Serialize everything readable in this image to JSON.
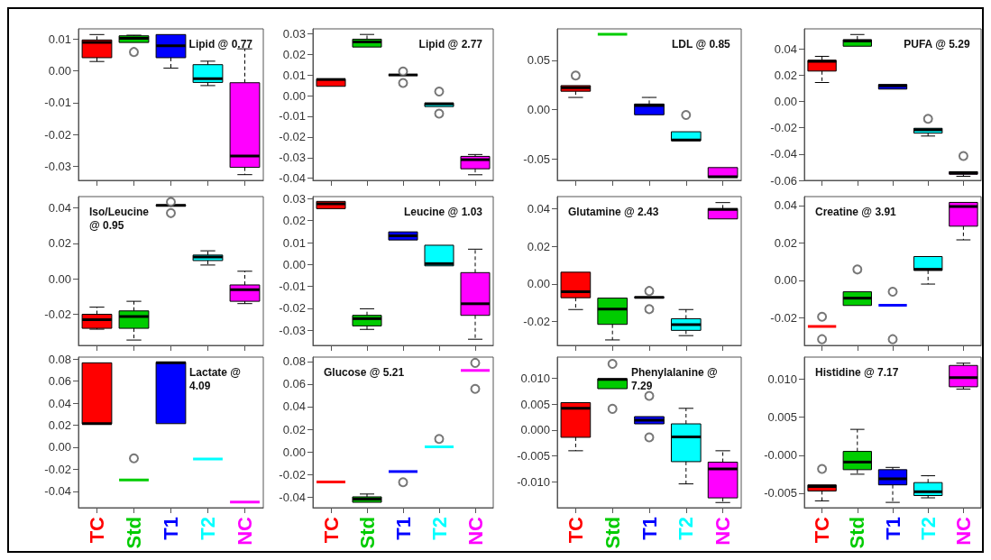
{
  "chart_data": [
    {
      "type": "box",
      "title": "Lipid @ 0.77",
      "categories": [
        "TC",
        "Std",
        "T1",
        "T2",
        "NC"
      ],
      "colors": [
        "#ff0000",
        "#00cc00",
        "#0000ff",
        "#00ffff",
        "#ff00ff"
      ],
      "tick_labels": "y",
      "ylim": [
        -0.0345,
        0.0133
      ],
      "yticks": [
        0.01,
        {
          "value": 0,
          "label": "0.00"
        },
        -0.01,
        -0.02,
        -0.03
      ],
      "boxes": [
        {
          "low": 0.003,
          "q1": 0.0042,
          "median": 0.009,
          "q3": 0.0098,
          "high": 0.0115
        },
        {
          "low": 0.009,
          "q1": 0.009,
          "median": 0.0103,
          "q3": 0.0111,
          "high": 0.0113,
          "outliers": [
            0.006
          ]
        },
        {
          "low": 0.0009,
          "q1": 0.0042,
          "median": 0.008,
          "q3": 0.0115,
          "high": 0.0115
        },
        {
          "low": -0.0046,
          "q1": -0.0036,
          "median": -0.0024,
          "q3": 0.002,
          "high": 0.0031
        },
        {
          "low": -0.0327,
          "q1": -0.0304,
          "median": -0.0268,
          "q3": -0.0037,
          "high": 0.007
        }
      ]
    },
    {
      "type": "box",
      "title": "Lipid @ 2.77",
      "categories": [
        "TC",
        "Std",
        "T1",
        "T2",
        "NC"
      ],
      "colors": [
        "#ff0000",
        "#00cc00",
        "#0000ff",
        "#00ffff",
        "#ff00ff"
      ],
      "tick_labels": "y",
      "ylim": [
        -0.041,
        0.0323
      ],
      "yticks": [
        0.03,
        0.02,
        0.01,
        {
          "value": 0,
          "label": "0.00"
        },
        -0.01,
        -0.02,
        -0.03,
        -0.04
      ],
      "boxes": [
        {
          "low": 0.0045,
          "q1": 0.0045,
          "median": 0.0078,
          "q3": 0.0081,
          "high": 0.0081
        },
        {
          "low": 0.0235,
          "q1": 0.0235,
          "median": 0.026,
          "q3": 0.0273,
          "high": 0.0296
        },
        {
          "low": 0.0098,
          "q1": 0.0098,
          "median": 0.01,
          "q3": 0.0102,
          "high": 0.0102,
          "outliers": [
            0.0117,
            0.0061
          ]
        },
        {
          "low": -0.0053,
          "q1": -0.0053,
          "median": -0.004,
          "q3": -0.0036,
          "high": -0.0036,
          "outliers": [
            0.002,
            -0.0087
          ]
        },
        {
          "low": -0.0383,
          "q1": -0.0354,
          "median": -0.031,
          "q3": -0.0294,
          "high": -0.0285
        }
      ]
    },
    {
      "type": "box",
      "title": "LDL @ 0.85",
      "categories": [
        "TC",
        "Std",
        "T1",
        "T2",
        "NC"
      ],
      "colors": [
        "#ff0000",
        "#00cc00",
        "#0000ff",
        "#00ffff",
        "#ff00ff"
      ],
      "tick_labels": "y",
      "ylim": [
        -0.072,
        0.082
      ],
      "yticks": [
        0.05,
        {
          "value": 0,
          "label": "0.00"
        },
        -0.05
      ],
      "boxes": [
        {
          "low": 0.0123,
          "q1": 0.0186,
          "median": 0.0223,
          "q3": 0.0243,
          "high": 0.0243,
          "outliers": [
            0.0346
          ]
        },
        {
          "low": 0.0764,
          "q1": 0.0764,
          "median": 0.0764,
          "q3": 0.0764,
          "high": 0.0764
        },
        {
          "low": -0.0053,
          "q1": -0.0053,
          "median": 0.004,
          "q3": 0.0056,
          "high": 0.0123
        },
        {
          "low": -0.0316,
          "q1": -0.0316,
          "median": -0.0309,
          "q3": -0.0226,
          "high": -0.0226,
          "outliers": [
            -0.0056
          ]
        },
        {
          "low": -0.069,
          "q1": -0.069,
          "median": -0.0684,
          "q3": -0.059,
          "high": -0.059
        }
      ]
    },
    {
      "type": "box",
      "title": "PUFA @ 5.29",
      "categories": [
        "TC",
        "Std",
        "T1",
        "T2",
        "NC"
      ],
      "colors": [
        "#ff0000",
        "#00cc00",
        "#0000ff",
        "#00ffff",
        "#ff00ff"
      ],
      "tick_labels": "y",
      "ylim": [
        -0.06,
        0.0552
      ],
      "yticks": [
        0.04,
        0.02,
        {
          "value": 0,
          "label": "0.00"
        },
        -0.02,
        -0.04,
        -0.06
      ],
      "boxes": [
        {
          "low": 0.0144,
          "q1": 0.0231,
          "median": 0.0306,
          "q3": 0.0313,
          "high": 0.0343
        },
        {
          "low": 0.042,
          "q1": 0.042,
          "median": 0.046,
          "q3": 0.047,
          "high": 0.0509
        },
        {
          "low": 0.0094,
          "q1": 0.0094,
          "median": 0.0119,
          "q3": 0.0129,
          "high": 0.0129
        },
        {
          "low": -0.0263,
          "q1": -0.0241,
          "median": -0.0216,
          "q3": -0.0204,
          "high": -0.0204,
          "outliers": [
            -0.0132
          ]
        },
        {
          "low": -0.0569,
          "q1": -0.0554,
          "median": -0.0542,
          "q3": -0.0534,
          "high": -0.0534,
          "outliers": [
            -0.0415
          ]
        }
      ]
    },
    {
      "type": "box",
      "title": "Iso/Leucine @ 0.95",
      "categories": [
        "TC",
        "Std",
        "T1",
        "T2",
        "NC"
      ],
      "colors": [
        "#ff0000",
        "#00cc00",
        "#0000ff",
        "#00ffff",
        "#ff00ff"
      ],
      "tick_labels": "y",
      "ylim": [
        -0.0374,
        0.0463
      ],
      "yticks": [
        0.04,
        0.02,
        {
          "value": 0,
          "label": "0.00"
        },
        -0.02
      ],
      "boxes": [
        {
          "low": -0.0283,
          "q1": -0.0278,
          "median": -0.023,
          "q3": -0.0199,
          "high": -0.0159
        },
        {
          "low": -0.0344,
          "q1": -0.0278,
          "median": -0.0212,
          "q3": -0.018,
          "high": -0.0126
        },
        {
          "low": 0.041,
          "q1": 0.041,
          "median": 0.0413,
          "q3": 0.0416,
          "high": 0.0416,
          "outliers": [
            0.0433,
            0.037
          ]
        },
        {
          "low": 0.0078,
          "q1": 0.0103,
          "median": 0.0123,
          "q3": 0.0134,
          "high": 0.0158
        },
        {
          "low": -0.0139,
          "q1": -0.0126,
          "median": -0.0061,
          "q3": -0.0034,
          "high": 0.0043
        }
      ]
    },
    {
      "type": "box",
      "title": "Leucine @ 1.03",
      "categories": [
        "TC",
        "Std",
        "T1",
        "T2",
        "NC"
      ],
      "colors": [
        "#ff0000",
        "#00cc00",
        "#0000ff",
        "#00ffff",
        "#ff00ff"
      ],
      "tick_labels": "y",
      "ylim": [
        -0.0369,
        0.031
      ],
      "yticks": [
        0.03,
        0.02,
        0.01,
        {
          "value": 0,
          "label": "0.00"
        },
        -0.01,
        -0.02,
        -0.03
      ],
      "boxes": [
        {
          "low": 0.0255,
          "q1": 0.0255,
          "median": 0.0277,
          "q3": 0.0288,
          "high": 0.0288
        },
        {
          "low": -0.0296,
          "q1": -0.028,
          "median": -0.0247,
          "q3": -0.0232,
          "high": -0.0202
        },
        {
          "low": 0.0112,
          "q1": 0.0112,
          "median": 0.0131,
          "q3": 0.0149,
          "high": 0.0149
        },
        {
          "low": -0.0006,
          "q1": -0.0006,
          "median": 0.0004,
          "q3": 0.0088,
          "high": 0.0088
        },
        {
          "low": -0.0341,
          "q1": -0.0232,
          "median": -0.0179,
          "q3": -0.0037,
          "high": 0.007
        }
      ]
    },
    {
      "type": "box",
      "title": "Glutamine @ 2.43",
      "categories": [
        "TC",
        "Std",
        "T1",
        "T2",
        "NC"
      ],
      "colors": [
        "#ff0000",
        "#00cc00",
        "#0000ff",
        "#00ffff",
        "#ff00ff"
      ],
      "tick_labels": "y",
      "ylim": [
        -0.0327,
        0.0466
      ],
      "yticks": [
        0.04,
        0.02,
        {
          "value": 0,
          "label": "0.00"
        },
        -0.02
      ],
      "boxes": [
        {
          "low": -0.0136,
          "q1": -0.0073,
          "median": -0.0041,
          "q3": 0.0063,
          "high": 0.0063
        },
        {
          "low": -0.0298,
          "q1": -0.0215,
          "median": -0.0134,
          "q3": -0.0075,
          "high": -0.0075
        },
        {
          "low": -0.0073,
          "q1": -0.0073,
          "median": -0.0071,
          "q3": -0.007,
          "high": -0.007,
          "outliers": [
            -0.0037,
            -0.0134
          ]
        },
        {
          "low": -0.0275,
          "q1": -0.0247,
          "median": -0.0217,
          "q3": -0.0185,
          "high": -0.0136
        },
        {
          "low": 0.0347,
          "q1": 0.0347,
          "median": 0.0397,
          "q3": 0.0402,
          "high": 0.0434
        }
      ]
    },
    {
      "type": "box",
      "title": "Creatine @ 3.91",
      "categories": [
        "TC",
        "Std",
        "T1",
        "T2",
        "NC"
      ],
      "colors": [
        "#ff0000",
        "#00cc00",
        "#0000ff",
        "#00ffff",
        "#ff00ff"
      ],
      "tick_labels": "y",
      "ylim": [
        -0.0347,
        0.0447
      ],
      "yticks": [
        0.04,
        0.02,
        {
          "value": 0,
          "label": "0.00"
        },
        -0.02
      ],
      "boxes": [
        {
          "low": -0.0246,
          "q1": -0.0246,
          "median": -0.0246,
          "q3": -0.0246,
          "high": -0.0246,
          "outliers": [
            -0.0194,
            -0.0314
          ]
        },
        {
          "low": -0.0134,
          "q1": -0.0134,
          "median": -0.0095,
          "q3": -0.0061,
          "high": -0.0061,
          "outliers": [
            0.0058
          ]
        },
        {
          "low": -0.0133,
          "q1": -0.0133,
          "median": -0.0133,
          "q3": -0.0133,
          "high": -0.0133,
          "outliers": [
            -0.0061,
            -0.0314
          ]
        },
        {
          "low": -0.002,
          "q1": 0.0053,
          "median": 0.0059,
          "q3": 0.0127,
          "high": 0.0127
        },
        {
          "low": 0.0216,
          "q1": 0.0289,
          "median": 0.0394,
          "q3": 0.0416,
          "high": 0.0416
        }
      ]
    },
    {
      "type": "box",
      "title": "Lactate @ 4.09",
      "categories": [
        "TC",
        "Std",
        "T1",
        "T2",
        "NC"
      ],
      "colors": [
        "#ff0000",
        "#00cc00",
        "#0000ff",
        "#00ffff",
        "#ff00ff"
      ],
      "ylim": [
        -0.0549,
        0.0818
      ],
      "yticks": [
        0.08,
        0.06,
        0.04,
        0.02,
        {
          "value": 0,
          "label": "0.00"
        },
        -0.02,
        -0.04
      ],
      "boxes": [
        {
          "low": 0.0211,
          "q1": 0.0211,
          "median": 0.0214,
          "q3": 0.0766,
          "high": 0.0766
        },
        {
          "low": -0.0298,
          "q1": -0.0298,
          "median": -0.0298,
          "q3": -0.0298,
          "high": -0.0298,
          "outliers": [
            -0.0101
          ]
        },
        {
          "low": 0.0214,
          "q1": 0.0214,
          "median": 0.0766,
          "q3": 0.0772,
          "high": 0.0772
        },
        {
          "low": -0.0107,
          "q1": -0.0107,
          "median": -0.0107,
          "q3": -0.0107,
          "high": -0.0107
        },
        {
          "low": -0.0497,
          "q1": -0.0497,
          "median": -0.0497,
          "q3": -0.0497,
          "high": -0.0497
        }
      ]
    },
    {
      "type": "box",
      "title": "Glucose @ 5.21",
      "categories": [
        "TC",
        "Std",
        "T1",
        "T2",
        "NC"
      ],
      "colors": [
        "#ff0000",
        "#00cc00",
        "#0000ff",
        "#00ffff",
        "#ff00ff"
      ],
      "ylim": [
        -0.0494,
        0.0839
      ],
      "yticks": [
        0.08,
        0.06,
        0.04,
        0.02,
        {
          "value": 0,
          "label": "0.00"
        },
        -0.02,
        -0.04
      ],
      "boxes": [
        {
          "low": -0.0266,
          "q1": -0.0266,
          "median": -0.0266,
          "q3": -0.0266,
          "high": -0.0266
        },
        {
          "low": -0.0446,
          "q1": -0.0446,
          "median": -0.0418,
          "q3": -0.0398,
          "high": -0.0373
        },
        {
          "low": -0.0174,
          "q1": -0.0174,
          "median": -0.0174,
          "q3": -0.0174,
          "high": -0.0174,
          "outliers": [
            -0.0269
          ]
        },
        {
          "low": 0.0045,
          "q1": 0.0045,
          "median": 0.0045,
          "q3": 0.0045,
          "high": 0.0045,
          "outliers": [
            0.0115
          ]
        },
        {
          "low": 0.0721,
          "q1": 0.0721,
          "median": 0.0721,
          "q3": 0.0721,
          "high": 0.0721,
          "outliers": [
            0.0788,
            0.0558
          ]
        }
      ]
    },
    {
      "type": "box",
      "title": "Phenylalanine @ 7.29",
      "categories": [
        "TC",
        "Std",
        "T1",
        "T2",
        "NC"
      ],
      "colors": [
        "#ff0000",
        "#00cc00",
        "#0000ff",
        "#00ffff",
        "#ff00ff"
      ],
      "ylim": [
        -0.015,
        0.0141
      ],
      "yticks": [
        {
          "value": 0.01,
          "label": "0.010"
        },
        {
          "value": 0.005,
          "label": "0.005"
        },
        {
          "value": 0,
          "label": "0.000"
        },
        {
          "value": -0.005,
          "label": "-0.005"
        },
        {
          "value": -0.01,
          "label": "-0.010"
        }
      ],
      "boxes": [
        {
          "low": -0.004,
          "q1": -0.0014,
          "median": 0.0042,
          "q3": 0.0053,
          "high": 0.0053
        },
        {
          "low": 0.008,
          "q1": 0.008,
          "median": 0.0098,
          "q3": 0.0099,
          "high": 0.0099,
          "outliers": [
            0.0128,
            0.0041
          ]
        },
        {
          "low": 0.0012,
          "q1": 0.0012,
          "median": 0.0019,
          "q3": 0.0026,
          "high": 0.0026,
          "outliers": [
            0.0066,
            -0.0014
          ]
        },
        {
          "low": -0.0104,
          "q1": -0.0061,
          "median": -0.0013,
          "q3": 0.0012,
          "high": 0.0042
        },
        {
          "low": -0.014,
          "q1": -0.0131,
          "median": -0.0075,
          "q3": -0.0062,
          "high": -0.004
        }
      ]
    },
    {
      "type": "box",
      "title": "Histidine @ 7.17",
      "categories": [
        "TC",
        "Std",
        "T1",
        "T2",
        "NC"
      ],
      "colors": [
        "#ff0000",
        "#00cc00",
        "#0000ff",
        "#00ffff",
        "#ff00ff"
      ],
      "ylim": [
        -0.0069,
        0.0129
      ],
      "yticks": [
        {
          "value": 0.01,
          "label": "0.010"
        },
        {
          "value": 0.005,
          "label": "0.005"
        },
        {
          "value": 0,
          "label": "-0.000"
        },
        {
          "value": -0.005,
          "label": "-0.005"
        }
      ],
      "boxes": [
        {
          "low": -0.006,
          "q1": -0.0047,
          "median": -0.0041,
          "q3": -0.0039,
          "high": -0.0039,
          "outliers": [
            -0.0018
          ]
        },
        {
          "low": -0.0025,
          "q1": -0.0019,
          "median": -0.0009,
          "q3": 0.0005,
          "high": 0.0034
        },
        {
          "low": -0.0062,
          "q1": -0.0039,
          "median": -0.0031,
          "q3": -0.0019,
          "high": -0.0016
        },
        {
          "low": -0.0056,
          "q1": -0.0053,
          "median": -0.0048,
          "q3": -0.0036,
          "high": -0.0027
        },
        {
          "low": 0.0087,
          "q1": 0.009,
          "median": 0.0102,
          "q3": 0.0118,
          "high": 0.0121
        }
      ]
    }
  ]
}
